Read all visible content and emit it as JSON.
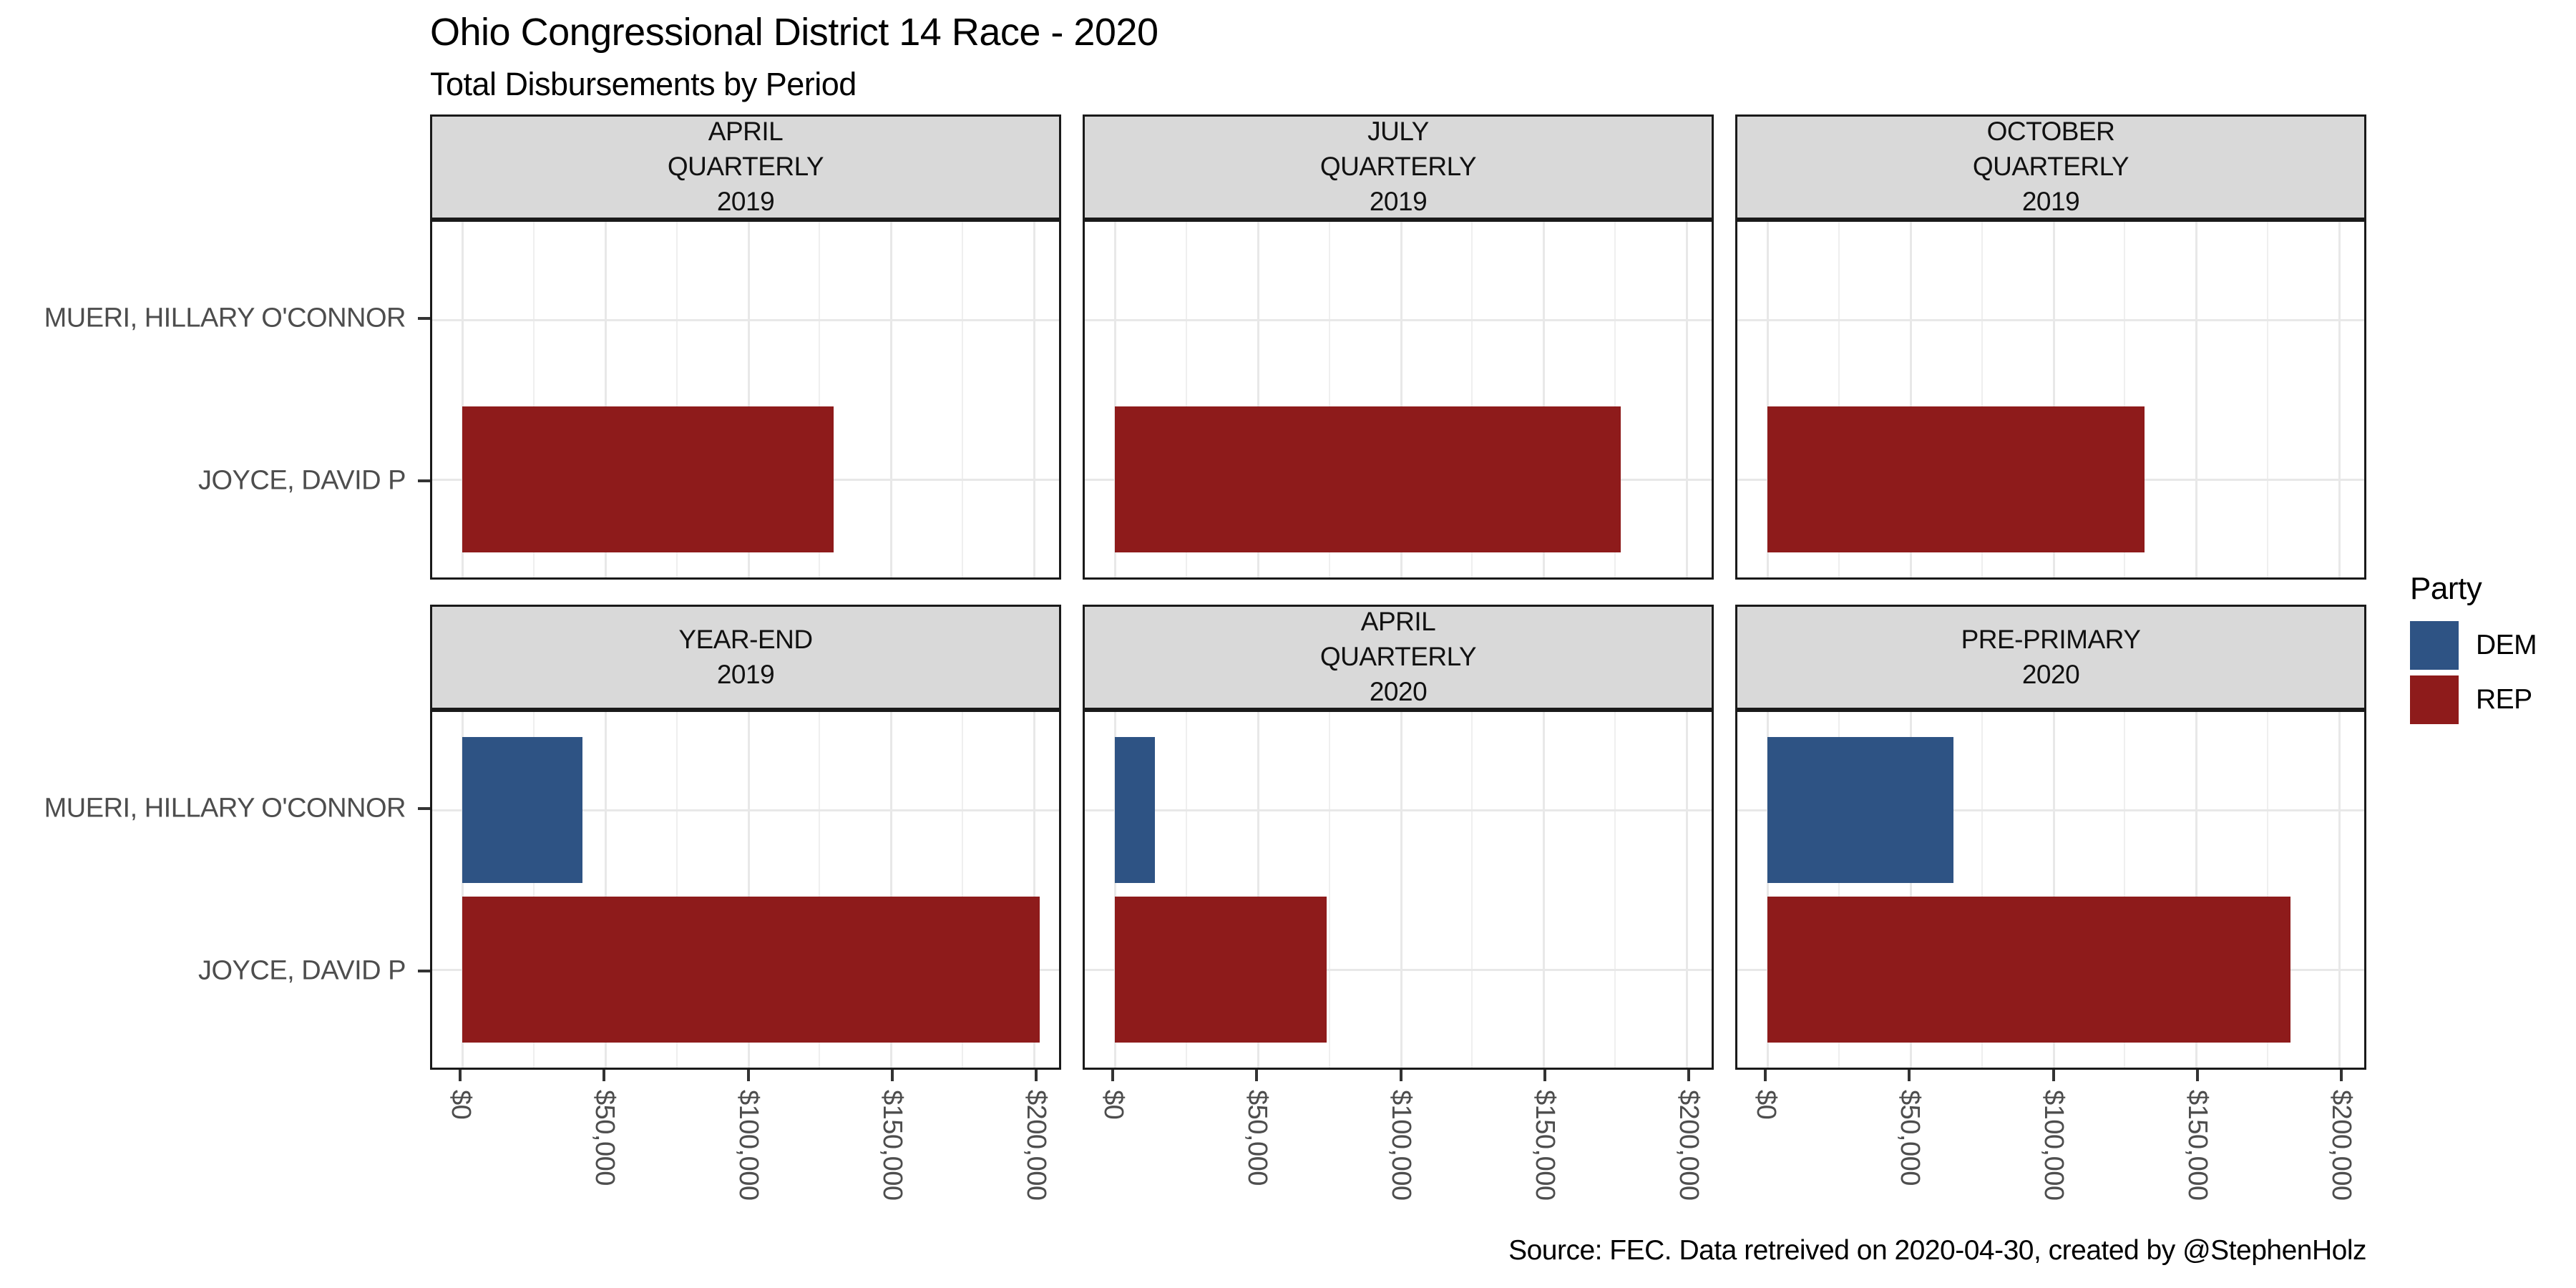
{
  "title": "Ohio Congressional District 14 Race - 2020",
  "subtitle": "Total Disbursements by Period",
  "caption": "Source: FEC. Data retreived on 2020-04-30, created by @StephenHolz",
  "legend": {
    "title": "Party",
    "items": [
      {
        "label": "DEM",
        "color": "#2E5384"
      },
      {
        "label": "REP",
        "color": "#8E1B1B"
      }
    ]
  },
  "colors": {
    "panel_border": "#1a1a1a",
    "strip_background": "#D9D9D9",
    "gridline": "#E8E8E8",
    "axis_text": "#4D4D4D",
    "dem": "#2E5384",
    "rep": "#8E1B1B"
  },
  "chart_data": {
    "type": "bar",
    "orientation": "horizontal",
    "facet_layout": {
      "rows": 2,
      "cols": 3
    },
    "categories": [
      "MUERI, HILLARY O'CONNOR",
      "JOYCE, DAVID P"
    ],
    "category_parties": {
      "MUERI, HILLARY O'CONNOR": "DEM",
      "JOYCE, DAVID P": "REP"
    },
    "category_centers_pct": [
      27.5,
      72.5
    ],
    "bar_half_height_pct": 20.5,
    "x_axis": {
      "zero_pct": 4.8,
      "pct_per_50k": 22.8,
      "major_ticks": [
        {
          "value": 0,
          "label": "$0"
        },
        {
          "value": 50000,
          "label": "$50,000"
        },
        {
          "value": 100000,
          "label": "$100,000"
        },
        {
          "value": 150000,
          "label": "$150,000"
        },
        {
          "value": 200000,
          "label": "$200,000"
        }
      ],
      "minor_ticks": [
        25000,
        75000,
        125000,
        175000
      ],
      "xlim": [
        0,
        210000
      ]
    },
    "facets": [
      {
        "period": "APRIL QUARTERLY 2019",
        "label_lines": [
          "APRIL",
          "QUARTERLY",
          "2019"
        ],
        "bars": [
          {
            "candidate": "JOYCE, DAVID P",
            "party": "REP",
            "value": 130000
          }
        ]
      },
      {
        "period": "JULY QUARTERLY 2019",
        "label_lines": [
          "JULY",
          "QUARTERLY",
          "2019"
        ],
        "bars": [
          {
            "candidate": "JOYCE, DAVID P",
            "party": "REP",
            "value": 177000
          }
        ]
      },
      {
        "period": "OCTOBER QUARTERLY 2019",
        "label_lines": [
          "OCTOBER",
          "QUARTERLY",
          "2019"
        ],
        "bars": [
          {
            "candidate": "JOYCE, DAVID P",
            "party": "REP",
            "value": 132000
          }
        ]
      },
      {
        "period": "YEAR-END 2019",
        "label_lines": [
          "YEAR-END",
          "2019"
        ],
        "bars": [
          {
            "candidate": "MUERI, HILLARY O'CONNOR",
            "party": "DEM",
            "value": 42000
          },
          {
            "candidate": "JOYCE, DAVID P",
            "party": "REP",
            "value": 202000
          }
        ]
      },
      {
        "period": "APRIL QUARTERLY 2020",
        "label_lines": [
          "APRIL",
          "QUARTERLY",
          "2020"
        ],
        "bars": [
          {
            "candidate": "MUERI, HILLARY O'CONNOR",
            "party": "DEM",
            "value": 14000
          },
          {
            "candidate": "JOYCE, DAVID P",
            "party": "REP",
            "value": 74000
          }
        ]
      },
      {
        "period": "PRE-PRIMARY 2020",
        "label_lines": [
          "PRE-PRIMARY",
          "2020"
        ],
        "bars": [
          {
            "candidate": "MUERI, HILLARY O'CONNOR",
            "party": "DEM",
            "value": 65000
          },
          {
            "candidate": "JOYCE, DAVID P",
            "party": "REP",
            "value": 183000
          }
        ]
      }
    ]
  }
}
